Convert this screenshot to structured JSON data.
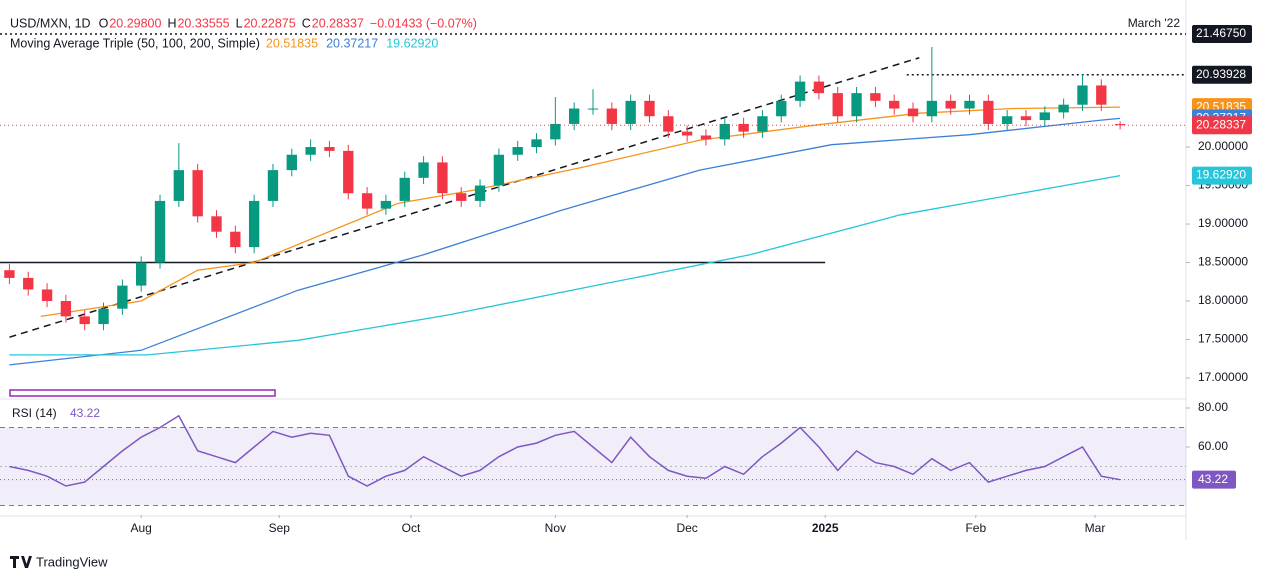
{
  "chart_data": {
    "type": "candlestick",
    "header": {
      "symbol": "USD/MXN, 1D",
      "ohlc": [
        {
          "key": "O",
          "value": "20.29800"
        },
        {
          "key": "H",
          "value": "20.33555"
        },
        {
          "key": "L",
          "value": "20.22875"
        },
        {
          "key": "C",
          "value": "20.28337"
        }
      ],
      "change": "−0.01433 (−0.07%)",
      "study": "Moving Average Triple (50, 100, 200, Simple)",
      "corner_note": "March '22"
    },
    "xlim": [
      -1.5,
      187.5
    ],
    "xticks": [
      {
        "value": 21,
        "label": "Aug"
      },
      {
        "value": 43,
        "label": "Sep"
      },
      {
        "value": 64,
        "label": "Oct"
      },
      {
        "value": 87,
        "label": "Nov"
      },
      {
        "value": 108,
        "label": "Dec"
      },
      {
        "value": 130,
        "label": "2025"
      },
      {
        "value": 154,
        "label": "Feb"
      },
      {
        "value": 173,
        "label": "Mar"
      }
    ],
    "ylim": [
      16.74,
      21.78
    ],
    "yticks": [
      {
        "value": 20,
        "label": "20.00000"
      },
      {
        "value": 19.5,
        "label": "19.50000"
      },
      {
        "value": 19,
        "label": "19.00000"
      },
      {
        "value": 18.5,
        "label": "18.50000"
      },
      {
        "value": 18,
        "label": "18.00000"
      },
      {
        "value": 17.5,
        "label": "17.50000"
      },
      {
        "value": 17,
        "label": "17.00000"
      }
    ],
    "up_color": "#089981",
    "down_color": "#f23645",
    "x": [
      0,
      3,
      6,
      9,
      12,
      15,
      18,
      21,
      24,
      27,
      30,
      33,
      36,
      39,
      42,
      45,
      48,
      51,
      54,
      57,
      60,
      63,
      66,
      69,
      72,
      75,
      78,
      81,
      84,
      87,
      90,
      93,
      96,
      99,
      102,
      105,
      108,
      111,
      114,
      117,
      120,
      123,
      126,
      129,
      132,
      135,
      138,
      141,
      144,
      147,
      150,
      153,
      156,
      159,
      162,
      165,
      168,
      171,
      174,
      177
    ],
    "open": [
      18.4,
      18.3,
      18.15,
      18.0,
      17.8,
      17.7,
      17.9,
      18.2,
      18.5,
      19.3,
      19.7,
      19.1,
      18.9,
      18.7,
      19.3,
      19.7,
      19.9,
      20.0,
      19.95,
      19.4,
      19.2,
      19.3,
      19.6,
      19.8,
      19.4,
      19.3,
      19.5,
      19.9,
      20.0,
      20.1,
      20.3,
      20.5,
      20.5,
      20.3,
      20.6,
      20.4,
      20.2,
      20.15,
      20.1,
      20.3,
      20.2,
      20.4,
      20.6,
      20.85,
      20.7,
      20.4,
      20.7,
      20.6,
      20.5,
      20.4,
      20.6,
      20.5,
      20.6,
      20.3,
      20.4,
      20.35,
      20.45,
      20.55,
      20.8,
      20.298
    ],
    "high": [
      18.48,
      18.38,
      18.23,
      18.08,
      17.88,
      17.98,
      18.28,
      18.58,
      19.38,
      20.05,
      19.78,
      19.18,
      18.98,
      19.38,
      19.78,
      19.98,
      20.1,
      20.08,
      20.03,
      19.48,
      19.38,
      19.68,
      19.88,
      19.88,
      19.48,
      19.58,
      19.98,
      20.08,
      20.18,
      20.65,
      20.58,
      20.75,
      20.58,
      20.68,
      20.68,
      20.48,
      20.28,
      20.23,
      20.38,
      20.38,
      20.48,
      20.68,
      20.93,
      20.93,
      20.78,
      20.78,
      20.78,
      20.68,
      20.58,
      21.3,
      20.68,
      20.68,
      20.68,
      20.48,
      20.48,
      20.53,
      20.63,
      20.95,
      20.88,
      20.33555
    ],
    "low": [
      18.22,
      18.07,
      17.92,
      17.72,
      17.62,
      17.62,
      17.82,
      18.12,
      18.42,
      19.22,
      19.02,
      18.82,
      18.62,
      18.62,
      19.22,
      19.62,
      19.82,
      19.87,
      19.32,
      19.12,
      19.12,
      19.22,
      19.52,
      19.32,
      19.22,
      19.22,
      19.42,
      19.82,
      19.92,
      20.02,
      20.22,
      20.42,
      20.22,
      20.22,
      20.32,
      20.12,
      20.07,
      20.02,
      20.02,
      20.12,
      20.12,
      20.32,
      20.52,
      20.62,
      20.32,
      20.32,
      20.52,
      20.42,
      20.32,
      20.32,
      20.42,
      20.42,
      20.22,
      20.22,
      20.27,
      20.27,
      20.37,
      20.47,
      20.47,
      20.22875
    ],
    "close": [
      18.3,
      18.15,
      18.0,
      17.8,
      17.7,
      17.9,
      18.2,
      18.5,
      19.3,
      19.7,
      19.1,
      18.9,
      18.7,
      19.3,
      19.7,
      19.9,
      20.0,
      19.95,
      19.4,
      19.2,
      19.3,
      19.6,
      19.8,
      19.4,
      19.3,
      19.5,
      19.9,
      20.0,
      20.1,
      20.3,
      20.5,
      20.5,
      20.3,
      20.6,
      20.4,
      20.2,
      20.15,
      20.1,
      20.3,
      20.2,
      20.4,
      20.6,
      20.85,
      20.7,
      20.4,
      20.7,
      20.6,
      20.5,
      20.4,
      20.6,
      20.5,
      20.6,
      20.3,
      20.4,
      20.35,
      20.45,
      20.55,
      20.8,
      20.55,
      20.28337
    ],
    "series": [
      {
        "name": "20.51835",
        "color": "#f7931a",
        "x": [
          5,
          21,
          30,
          39,
          62,
          74,
          91,
          110,
          129,
          145,
          160,
          177
        ],
        "values": [
          17.8,
          18.0,
          18.4,
          18.5,
          19.27,
          19.44,
          19.73,
          20.09,
          20.29,
          20.44,
          20.5,
          20.51835
        ]
      },
      {
        "name": "20.37217",
        "color": "#3d80d8",
        "x": [
          0,
          21,
          46,
          66,
          88,
          110,
          131,
          153,
          174,
          177
        ],
        "values": [
          17.17,
          17.36,
          18.14,
          18.6,
          19.18,
          19.7,
          20.03,
          20.16,
          20.35,
          20.37217
        ]
      },
      {
        "name": "19.62920",
        "color": "#26c6da",
        "x": [
          0,
          22,
          46,
          70,
          94,
          118,
          142,
          177
        ],
        "values": [
          17.3,
          17.3,
          17.49,
          17.82,
          18.21,
          18.6,
          19.12,
          19.6292
        ]
      }
    ],
    "trendline": {
      "x": [
        0,
        145
      ],
      "values": [
        17.53,
        21.16
      ],
      "color": "#131722"
    },
    "support": {
      "x": [
        -1.5,
        130
      ],
      "value": 18.5,
      "color": "#131722"
    },
    "levels": [
      {
        "from": -1.5,
        "value": 21.4675,
        "label": "21.46750"
      },
      {
        "from": 143,
        "value": 20.93928,
        "label": "20.93928"
      }
    ],
    "price_labels": [
      {
        "value": 20.51835,
        "label": "20.51835",
        "color": "#f7931a"
      },
      {
        "value": 20.37217,
        "label": "20.37217",
        "color": "#3d80d8"
      },
      {
        "value": 20.28337,
        "label": "20.28337",
        "color": "#f23645"
      },
      {
        "value": 19.6292,
        "label": "19.62920",
        "color": "#26c6da"
      }
    ],
    "rsi": {
      "title": "RSI (14)",
      "last_label": "43.22",
      "color": "#7e57c2",
      "ylim": [
        25.1,
        84.1
      ],
      "yticks": [
        {
          "value": 80,
          "label": "80.00"
        },
        {
          "value": 60,
          "label": "60.00"
        }
      ],
      "bands": [
        30,
        70
      ],
      "midline": 50,
      "values": [
        50,
        48,
        45,
        40,
        42,
        50,
        58,
        65,
        70,
        76,
        58,
        55,
        52,
        60,
        68,
        65,
        67,
        66,
        45,
        40,
        45,
        48,
        55,
        50,
        45,
        48,
        55,
        60,
        62,
        66,
        68,
        60,
        52,
        65,
        55,
        48,
        45,
        44,
        50,
        46,
        55,
        62,
        70,
        60,
        48,
        58,
        52,
        50,
        46,
        54,
        48,
        52,
        42,
        45,
        48,
        50,
        55,
        60,
        45,
        43.22
      ]
    },
    "brand": "TradingView"
  }
}
